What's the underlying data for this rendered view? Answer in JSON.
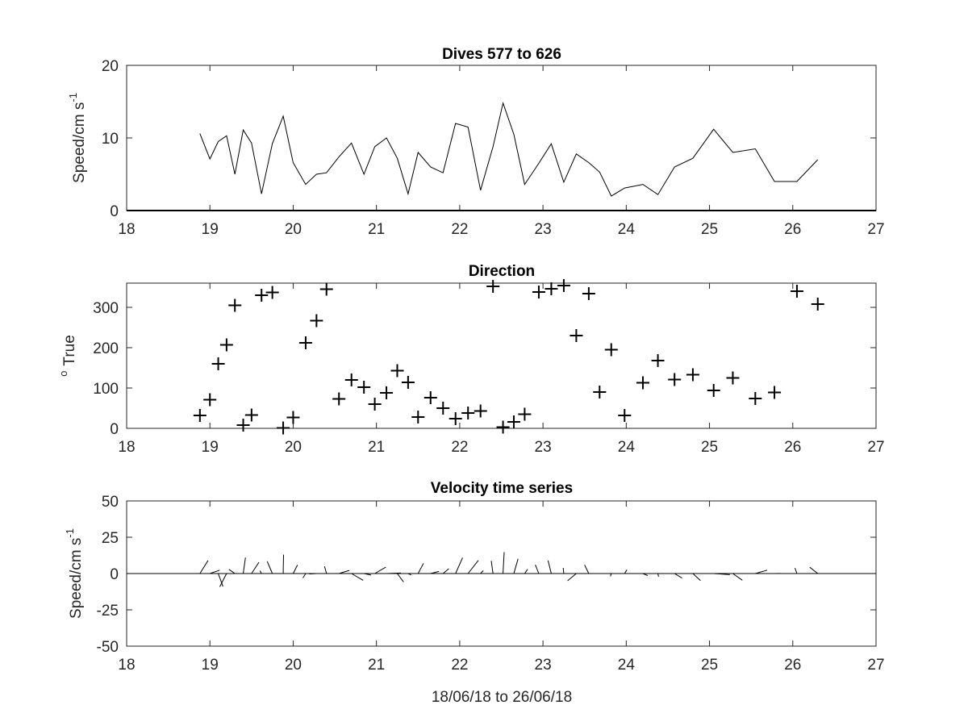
{
  "chart_data": [
    {
      "type": "line",
      "title": "Dives 577 to 626",
      "xlabel": "",
      "ylabel": {
        "base": "Speed/cm s",
        "sup": "-1"
      },
      "xlim": [
        18,
        27
      ],
      "ylim": [
        0,
        20
      ],
      "xticks": [
        "18",
        "19",
        "20",
        "21",
        "22",
        "23",
        "24",
        "25",
        "26",
        "27"
      ],
      "yticks": [
        "0",
        "10",
        "20"
      ],
      "grid": false,
      "series": [
        {
          "x": [
            18.88,
            19.0,
            19.1,
            19.2,
            19.3,
            19.4,
            19.5,
            19.62,
            19.75,
            19.88,
            20.0,
            20.15,
            20.28,
            20.4,
            20.55,
            20.7,
            20.85,
            20.98,
            21.12,
            21.25,
            21.38,
            21.5,
            21.65,
            21.8,
            21.95,
            22.1,
            22.25,
            22.4,
            22.52,
            22.65,
            22.78,
            22.95,
            23.1,
            23.25,
            23.4,
            23.55,
            23.68,
            23.82,
            23.98,
            24.2,
            24.38,
            24.58,
            24.8,
            25.05,
            25.28,
            25.55,
            25.78,
            26.05,
            26.3
          ],
          "y": [
            10.6,
            7.1,
            9.5,
            10.3,
            5.0,
            11.1,
            9.3,
            2.3,
            9.2,
            13.0,
            6.6,
            3.6,
            5.0,
            5.2,
            7.4,
            9.3,
            5.0,
            8.8,
            10.0,
            7.2,
            2.3,
            8.0,
            6.0,
            5.2,
            12.0,
            11.5,
            2.8,
            8.8,
            14.8,
            10.5,
            3.6,
            6.5,
            9.2,
            3.9,
            7.8,
            6.6,
            5.3,
            2.0,
            3.1,
            3.6,
            2.2,
            6.0,
            7.2,
            11.2,
            8.0,
            8.5,
            4.0,
            4.0,
            7.0
          ]
        }
      ]
    },
    {
      "type": "scatter",
      "title": "Direction",
      "xlabel": "",
      "ylabel": {
        "sup": "o",
        "base": "True"
      },
      "xlim": [
        18,
        27
      ],
      "ylim": [
        0,
        360
      ],
      "xticks": [
        "18",
        "19",
        "20",
        "21",
        "22",
        "23",
        "24",
        "25",
        "26",
        "27"
      ],
      "yticks": [
        "0",
        "100",
        "200",
        "300"
      ],
      "grid": false,
      "marker": "+",
      "series": [
        {
          "x": [
            18.88,
            19.0,
            19.1,
            19.2,
            19.3,
            19.4,
            19.5,
            19.62,
            19.75,
            19.88,
            20.0,
            20.15,
            20.28,
            20.4,
            20.55,
            20.7,
            20.85,
            20.98,
            21.12,
            21.25,
            21.38,
            21.5,
            21.65,
            21.8,
            21.95,
            22.1,
            22.25,
            22.4,
            22.52,
            22.65,
            22.78,
            22.95,
            23.1,
            23.25,
            23.4,
            23.55,
            23.68,
            23.82,
            23.98,
            24.2,
            24.38,
            24.58,
            24.8,
            25.05,
            25.28,
            25.55,
            25.78,
            26.05,
            26.3
          ],
          "y": [
            32,
            71,
            160,
            207,
            305,
            8,
            33,
            330,
            337,
            1,
            27,
            212,
            267,
            345,
            73,
            120,
            102,
            60,
            88,
            143,
            114,
            28,
            76,
            50,
            24,
            38,
            43,
            352,
            3,
            16,
            35,
            338,
            346,
            354,
            230,
            334,
            90,
            195,
            32,
            113,
            168,
            121,
            133,
            94,
            125,
            74,
            89,
            340,
            308
          ]
        }
      ]
    },
    {
      "type": "quiver",
      "title": "Velocity time series",
      "xlabel": "18/06/18 to 26/06/18",
      "ylabel": {
        "base": "Speed/cm s",
        "sup": "-1"
      },
      "xlim": [
        18,
        27
      ],
      "ylim": [
        -50,
        50
      ],
      "xticks": [
        "18",
        "19",
        "20",
        "21",
        "22",
        "23",
        "24",
        "25",
        "26",
        "27"
      ],
      "yticks": [
        "-50",
        "-25",
        "0",
        "25",
        "50"
      ],
      "grid": false,
      "zero_line": true,
      "series": [
        {
          "x": [
            18.88,
            19.0,
            19.1,
            19.2,
            19.3,
            19.4,
            19.5,
            19.62,
            19.75,
            19.88,
            20.0,
            20.15,
            20.28,
            20.4,
            20.55,
            20.7,
            20.85,
            20.98,
            21.12,
            21.25,
            21.38,
            21.5,
            21.65,
            21.8,
            21.95,
            22.1,
            22.25,
            22.4,
            22.52,
            22.65,
            22.78,
            22.95,
            23.1,
            23.25,
            23.4,
            23.55,
            23.68,
            23.82,
            23.98,
            24.2,
            24.38,
            24.58,
            24.8,
            25.05,
            25.28,
            25.55,
            25.78,
            26.05,
            26.3
          ],
          "speed": [
            10.6,
            7.1,
            9.5,
            10.3,
            5.0,
            11.1,
            9.3,
            2.3,
            9.2,
            13.0,
            6.6,
            3.6,
            5.0,
            5.2,
            7.4,
            9.3,
            5.0,
            8.8,
            10.0,
            7.2,
            2.3,
            8.0,
            6.0,
            5.2,
            12.0,
            11.5,
            2.8,
            8.8,
            14.8,
            10.5,
            3.6,
            6.5,
            9.2,
            3.9,
            7.8,
            6.6,
            5.3,
            2.0,
            3.1,
            3.6,
            2.2,
            6.0,
            7.2,
            11.2,
            8.0,
            8.5,
            4.0,
            4.0,
            7.0
          ],
          "direction_deg_true": [
            32,
            71,
            160,
            207,
            305,
            8,
            33,
            330,
            337,
            1,
            27,
            212,
            267,
            345,
            73,
            120,
            102,
            60,
            88,
            143,
            114,
            28,
            76,
            50,
            24,
            38,
            43,
            352,
            3,
            16,
            35,
            338,
            346,
            354,
            230,
            334,
            90,
            195,
            32,
            113,
            168,
            121,
            133,
            94,
            125,
            74,
            89,
            340,
            308
          ]
        }
      ]
    }
  ]
}
